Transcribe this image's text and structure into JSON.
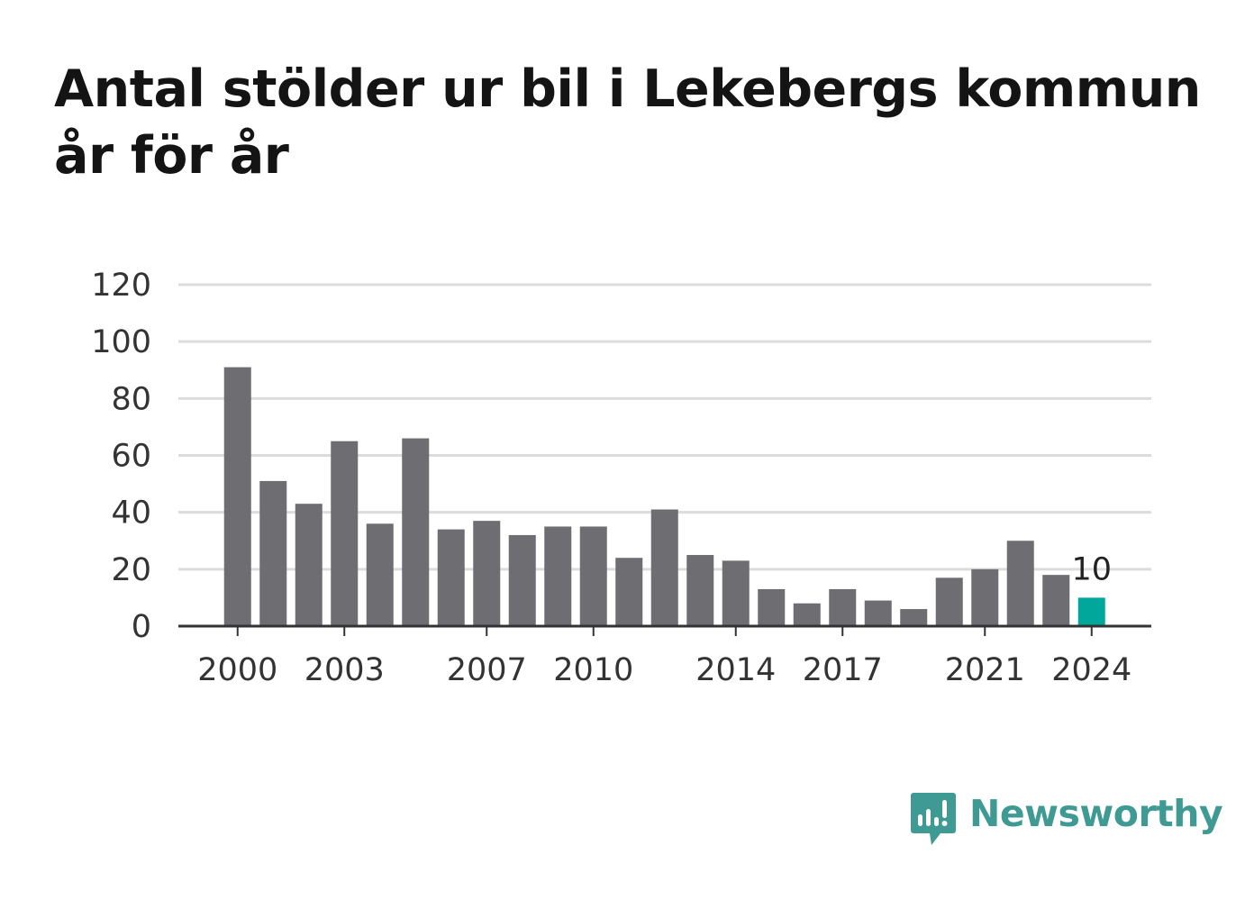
{
  "title": "Antal stölder ur bil i Lekebergs kommun år för år",
  "brand": {
    "name": "Newsworthy",
    "color": "#3e9a93"
  },
  "colors": {
    "bar": "#6e6d72",
    "highlight": "#00a79a",
    "grid": "#dcdcdc",
    "axis": "#333333"
  },
  "chart_data": {
    "type": "bar",
    "title": "Antal stölder ur bil i Lekebergs kommun år för år",
    "xlabel": "",
    "ylabel": "",
    "ylim": [
      0,
      120
    ],
    "yticks": [
      0,
      20,
      40,
      60,
      80,
      100,
      120
    ],
    "categories": [
      "2000",
      "2001",
      "2002",
      "2003",
      "2004",
      "2005",
      "2006",
      "2007",
      "2008",
      "2009",
      "2010",
      "2011",
      "2012",
      "2013",
      "2014",
      "2015",
      "2016",
      "2017",
      "2018",
      "2019",
      "2020",
      "2021",
      "2022",
      "2023",
      "2024"
    ],
    "values": [
      91,
      51,
      43,
      65,
      36,
      66,
      34,
      37,
      32,
      35,
      35,
      24,
      41,
      25,
      23,
      13,
      8,
      13,
      9,
      6,
      17,
      20,
      30,
      18,
      10
    ],
    "xtick_labels": [
      "2000",
      "2003",
      "2007",
      "2010",
      "2014",
      "2017",
      "2021",
      "2024"
    ],
    "highlight_category": "2024",
    "annotations": [
      {
        "category": "2024",
        "text": "10"
      }
    ],
    "grid": true,
    "legend": "none"
  }
}
